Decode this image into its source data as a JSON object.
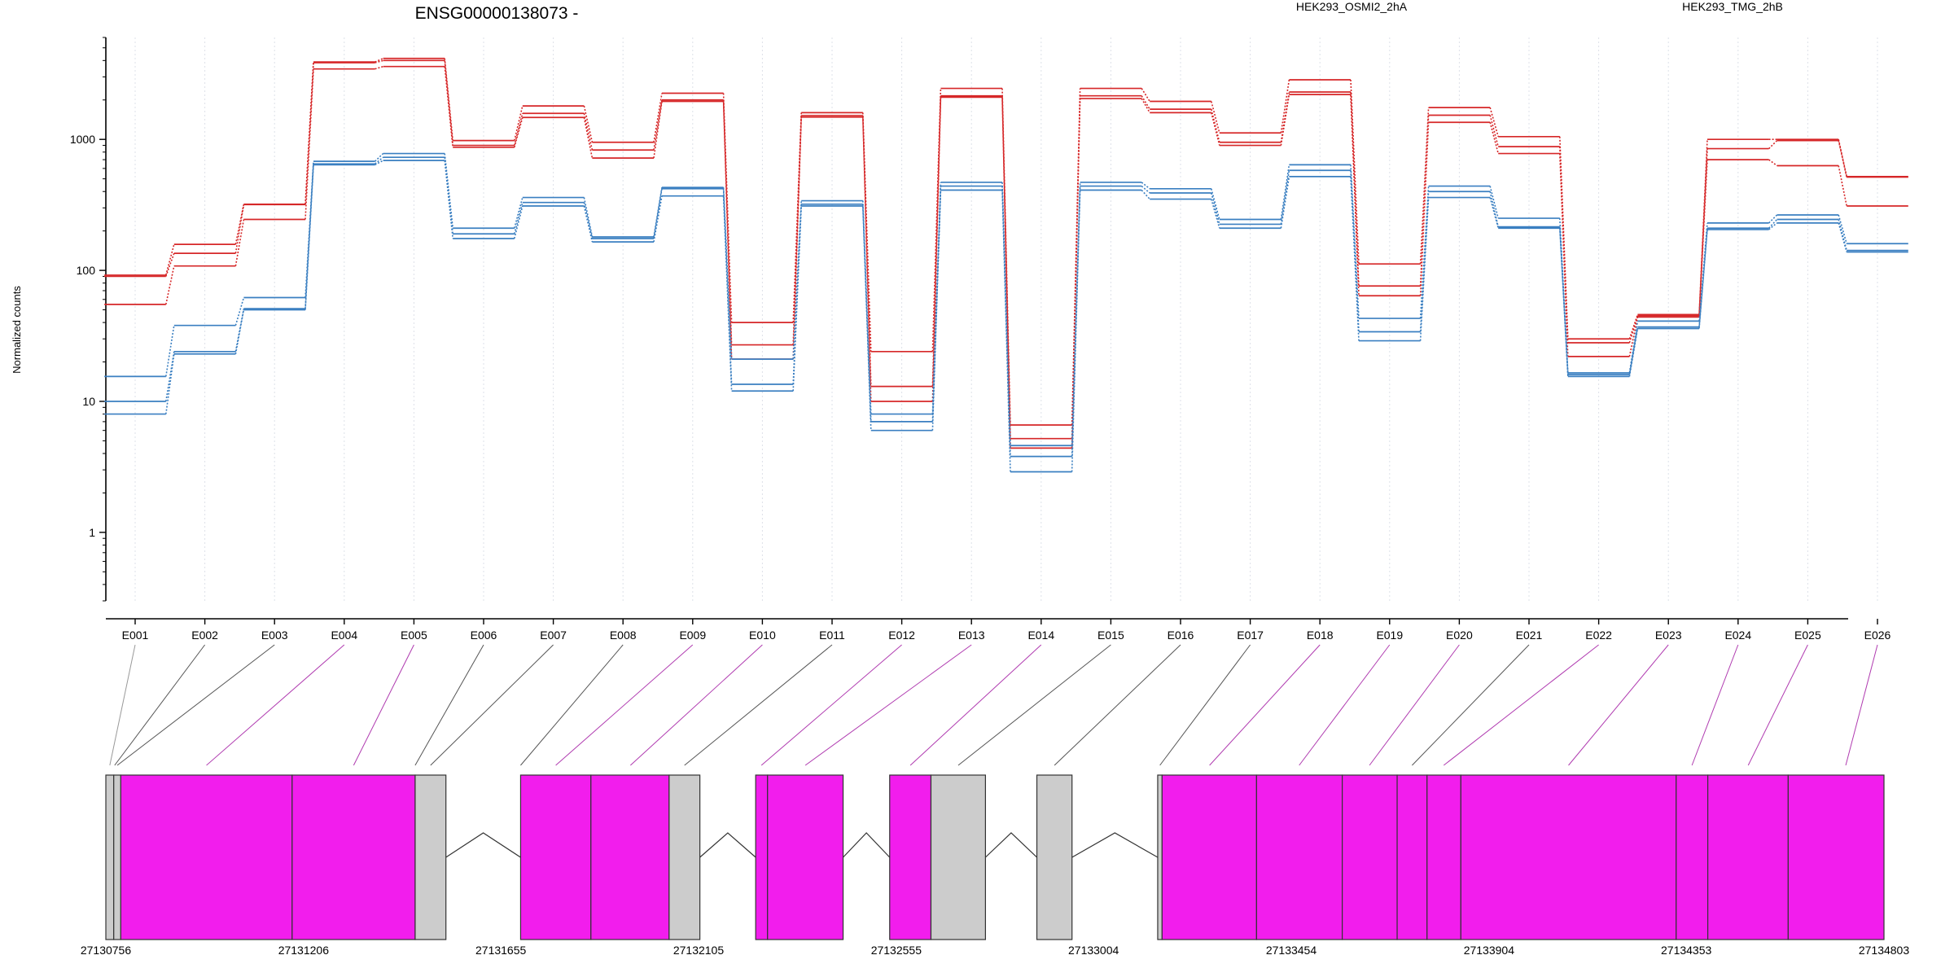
{
  "chart_data": {
    "type": "line",
    "title": "ENSG00000138073 -",
    "xlabel": "",
    "ylabel": "Normalized counts",
    "y_scale": "log",
    "ylim": [
      0.3,
      6000
    ],
    "y_ticks": [
      1,
      10,
      100,
      1000
    ],
    "y_tick_labels": [
      "1",
      "10",
      "100",
      "1000"
    ],
    "grid": "vertical dotted lines at each exon",
    "legend_placement": "top",
    "categories": [
      "E001",
      "E002",
      "E003",
      "E004",
      "E005",
      "E006",
      "E007",
      "E008",
      "E009",
      "E010",
      "E011",
      "E012",
      "E013",
      "E014",
      "E015",
      "E016",
      "E017",
      "E018",
      "E019",
      "E020",
      "E021",
      "E022",
      "E023",
      "E024",
      "E025",
      "E026"
    ],
    "series": [
      {
        "name": "HEK293_OSMI2_2hA",
        "group": "HEK293_OSMI2_2hA",
        "color": "#d62728",
        "values": [
          92,
          158,
          320,
          3900,
          4150,
          980,
          1800,
          950,
          2250,
          40,
          1600,
          24,
          2450,
          6.6,
          2450,
          1950,
          1120,
          2850,
          112,
          1750,
          1050,
          30,
          46,
          1000,
          1000,
          520
        ]
      },
      {
        "group": "HEK293_OSMI2_2hA",
        "color": "#d62728",
        "values": [
          90,
          135,
          318,
          3850,
          4000,
          900,
          1580,
          830,
          2000,
          27,
          1520,
          13,
          2150,
          5.2,
          2150,
          1700,
          950,
          2300,
          76,
          1530,
          880,
          28,
          45,
          850,
          980,
          515
        ]
      },
      {
        "group": "HEK293_OSMI2_2hA",
        "color": "#d62728",
        "values": [
          55,
          108,
          245,
          3450,
          3600,
          870,
          1470,
          720,
          1950,
          21,
          1480,
          10,
          2100,
          4.4,
          2050,
          1600,
          900,
          2200,
          64,
          1350,
          780,
          22,
          44,
          700,
          630,
          310
        ]
      },
      {
        "name": "HEK293_TMG_2hB",
        "group": "HEK293_TMG_2hB",
        "color": "#3a7fc1",
        "values": [
          15.5,
          38,
          62,
          680,
          780,
          210,
          360,
          180,
          430,
          21,
          340,
          8,
          470,
          4.6,
          470,
          420,
          245,
          640,
          43,
          440,
          250,
          16.5,
          41,
          230,
          265,
          160
        ]
      },
      {
        "group": "HEK293_TMG_2hB",
        "color": "#3a7fc1",
        "values": [
          10,
          24,
          51,
          650,
          730,
          190,
          330,
          175,
          420,
          13.5,
          320,
          7,
          440,
          3.8,
          440,
          390,
          225,
          580,
          34,
          400,
          215,
          16,
          37,
          210,
          245,
          142
        ]
      },
      {
        "group": "HEK293_TMG_2hB",
        "color": "#3a7fc1",
        "values": [
          8,
          23,
          50,
          640,
          690,
          175,
          310,
          165,
          370,
          12,
          310,
          6,
          410,
          2.9,
          410,
          350,
          210,
          520,
          29,
          360,
          210,
          15.5,
          36,
          205,
          230,
          138
        ]
      }
    ],
    "legend": [
      {
        "label": "HEK293_OSMI2_2hA",
        "color": "#d62728"
      },
      {
        "label": "HEK293_TMG_2hB",
        "color": "#3a7fc1"
      }
    ]
  },
  "gene_model": {
    "coordinate_labels": [
      "27130756",
      "27131206",
      "27131655",
      "27132105",
      "27132555",
      "27133004",
      "27133454",
      "27133904",
      "27134353",
      "27134803"
    ],
    "coordinate_values": [
      27130756,
      27131206,
      27131655,
      27132105,
      27132555,
      27133004,
      27133454,
      27133904,
      27134353,
      27134803
    ],
    "range": [
      27130756,
      27134803
    ],
    "exon_color_highlight": "#f21ded",
    "exon_color_normal": "#cccccc",
    "segments": [
      {
        "start": 27130756,
        "end": 27130774,
        "fill": "#cccccc"
      },
      {
        "start": 27130774,
        "end": 27130790,
        "fill": "#cccccc"
      },
      {
        "start": 27130790,
        "end": 27131180,
        "fill": "#f21ded"
      },
      {
        "start": 27131180,
        "end": 27131460,
        "fill": "#f21ded"
      },
      {
        "start": 27131460,
        "end": 27131530,
        "fill": "#cccccc"
      },
      {
        "start": 27131700,
        "end": 27131860,
        "fill": "#f21ded"
      },
      {
        "start": 27131860,
        "end": 27132038,
        "fill": "#f21ded"
      },
      {
        "start": 27132038,
        "end": 27132108,
        "fill": "#cccccc"
      },
      {
        "start": 27132235,
        "end": 27132262,
        "fill": "#f21ded"
      },
      {
        "start": 27132262,
        "end": 27132434,
        "fill": "#f21ded"
      },
      {
        "start": 27132540,
        "end": 27132634,
        "fill": "#f21ded"
      },
      {
        "start": 27132634,
        "end": 27132758,
        "fill": "#cccccc"
      },
      {
        "start": 27132875,
        "end": 27132955,
        "fill": "#cccccc"
      },
      {
        "start": 27133150,
        "end": 27133160,
        "fill": "#cccccc"
      },
      {
        "start": 27133160,
        "end": 27133375,
        "fill": "#f21ded"
      },
      {
        "start": 27133375,
        "end": 27133570,
        "fill": "#f21ded"
      },
      {
        "start": 27133570,
        "end": 27133695,
        "fill": "#f21ded"
      },
      {
        "start": 27133695,
        "end": 27133763,
        "fill": "#f21ded"
      },
      {
        "start": 27133763,
        "end": 27133840,
        "fill": "#f21ded"
      },
      {
        "start": 27133840,
        "end": 27134330,
        "fill": "#f21ded"
      },
      {
        "start": 27134330,
        "end": 27134402,
        "fill": "#f21ded"
      },
      {
        "start": 27134402,
        "end": 27134585,
        "fill": "#f21ded"
      },
      {
        "start": 27134585,
        "end": 27134803,
        "fill": "#f21ded"
      }
    ],
    "introns": [
      {
        "start": 27131530,
        "end": 27131700
      },
      {
        "start": 27132108,
        "end": 27132235
      },
      {
        "start": 27132434,
        "end": 27132540
      },
      {
        "start": 27132758,
        "end": 27132875
      },
      {
        "start": 27132955,
        "end": 27133150
      }
    ],
    "exon_map": [
      {
        "label": "E001",
        "genomic": 27130765,
        "color": "#999999"
      },
      {
        "label": "E002",
        "genomic": 27130776,
        "color": "#555555"
      },
      {
        "label": "E003",
        "genomic": 27130782,
        "color": "#555555"
      },
      {
        "label": "E004",
        "genomic": 27130985,
        "color": "#b03bb0"
      },
      {
        "label": "E005",
        "genomic": 27131320,
        "color": "#b03bb0"
      },
      {
        "label": "E006",
        "genomic": 27131460,
        "color": "#555555"
      },
      {
        "label": "E007",
        "genomic": 27131495,
        "color": "#555555"
      },
      {
        "label": "E008",
        "genomic": 27131700,
        "color": "#555555"
      },
      {
        "label": "E009",
        "genomic": 27131780,
        "color": "#b03bb0"
      },
      {
        "label": "E010",
        "genomic": 27131950,
        "color": "#b03bb0"
      },
      {
        "label": "E011",
        "genomic": 27132073,
        "color": "#555555"
      },
      {
        "label": "E012",
        "genomic": 27132248,
        "color": "#b03bb0"
      },
      {
        "label": "E013",
        "genomic": 27132348,
        "color": "#b03bb0"
      },
      {
        "label": "E014",
        "genomic": 27132587,
        "color": "#b03bb0"
      },
      {
        "label": "E015",
        "genomic": 27132696,
        "color": "#555555"
      },
      {
        "label": "E016",
        "genomic": 27132915,
        "color": "#555555"
      },
      {
        "label": "E017",
        "genomic": 27133155,
        "color": "#555555"
      },
      {
        "label": "E018",
        "genomic": 27133268,
        "color": "#b03bb0"
      },
      {
        "label": "E019",
        "genomic": 27133472,
        "color": "#b03bb0"
      },
      {
        "label": "E020",
        "genomic": 27133632,
        "color": "#b03bb0"
      },
      {
        "label": "E021",
        "genomic": 27133729,
        "color": "#555555"
      },
      {
        "label": "E022",
        "genomic": 27133801,
        "color": "#b03bb0"
      },
      {
        "label": "E023",
        "genomic": 27134085,
        "color": "#b03bb0"
      },
      {
        "label": "E024",
        "genomic": 27134366,
        "color": "#b03bb0"
      },
      {
        "label": "E025",
        "genomic": 27134494,
        "color": "#b03bb0"
      },
      {
        "label": "E026",
        "genomic": 27134716,
        "color": "#b03bb0"
      }
    ]
  }
}
